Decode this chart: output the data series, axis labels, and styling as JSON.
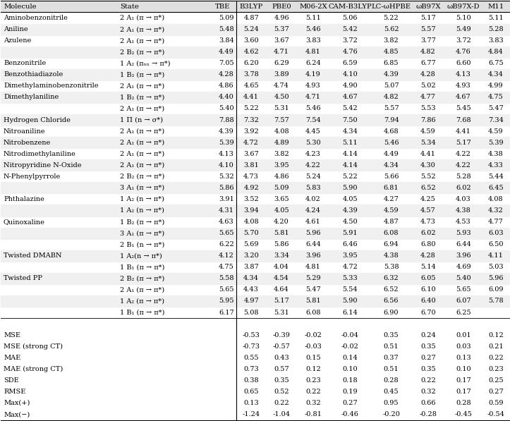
{
  "columns": [
    "Molecule",
    "State",
    "TBE",
    "B3LYP",
    "PBE0",
    "M06-2X",
    "CAM-B3LYP",
    "LC-ωHPBE",
    "ωB97X",
    "ωB97X-D",
    "M11"
  ],
  "rows": [
    [
      "Aminobenzonitrile",
      "2 A₁ (π → π*)",
      "5.09",
      "4.87",
      "4.96",
      "5.11",
      "5.06",
      "5.22",
      "5.17",
      "5.10",
      "5.11"
    ],
    [
      "Aniline",
      "2 A₁ (π → π*)",
      "5.48",
      "5.24",
      "5.37",
      "5.46",
      "5.42",
      "5.62",
      "5.57",
      "5.49",
      "5.28"
    ],
    [
      "Azulene",
      "2 A₁ (π → π*)",
      "3.84",
      "3.60",
      "3.67",
      "3.83",
      "3.72",
      "3.82",
      "3.77",
      "3.72",
      "3.83"
    ],
    [
      "",
      "2 B₂ (π → π*)",
      "4.49",
      "4.62",
      "4.71",
      "4.81",
      "4.76",
      "4.85",
      "4.82",
      "4.76",
      "4.84"
    ],
    [
      "Benzonitrile",
      "1 A₂ (πₙₙ → π*)",
      "7.05",
      "6.20",
      "6.29",
      "6.24",
      "6.59",
      "6.85",
      "6.77",
      "6.60",
      "6.75"
    ],
    [
      "Benzothiadiazole",
      "1 B₂ (π → π*)",
      "4.28",
      "3.78",
      "3.89",
      "4.19",
      "4.10",
      "4.39",
      "4.28",
      "4.13",
      "4.34"
    ],
    [
      "Dimethylaminobenzonitrile",
      "2 A₁ (π → π*)",
      "4.86",
      "4.65",
      "4.74",
      "4.93",
      "4.90",
      "5.07",
      "5.02",
      "4.93",
      "4.99"
    ],
    [
      "Dimethylaniline",
      "1 B₂ (π → π*)",
      "4.40",
      "4.41",
      "4.50",
      "4.71",
      "4.67",
      "4.82",
      "4.77",
      "4.67",
      "4.75"
    ],
    [
      "",
      "2 A₁ (π → π*)",
      "5.40",
      "5.22",
      "5.31",
      "5.46",
      "5.42",
      "5.57",
      "5.53",
      "5.45",
      "5.47"
    ],
    [
      "Hydrogen Chloride",
      "1 Π (n → σ*)",
      "7.88",
      "7.32",
      "7.57",
      "7.54",
      "7.50",
      "7.94",
      "7.86",
      "7.68",
      "7.34"
    ],
    [
      "Nitroaniline",
      "2 A₁ (π → π*)",
      "4.39",
      "3.92",
      "4.08",
      "4.45",
      "4.34",
      "4.68",
      "4.59",
      "4.41",
      "4.59"
    ],
    [
      "Nitrobenzene",
      "2 A₁ (π → π*)",
      "5.39",
      "4.72",
      "4.89",
      "5.30",
      "5.11",
      "5.46",
      "5.34",
      "5.17",
      "5.39"
    ],
    [
      "Nitrodimethylaniline",
      "2 A₁ (π → π*)",
      "4.13",
      "3.67",
      "3.82",
      "4.23",
      "4.14",
      "4.49",
      "4.41",
      "4.22",
      "4.38"
    ],
    [
      "Nitropyridine N-Oxide",
      "2 A₁ (π → π*)",
      "4.10",
      "3.81",
      "3.95",
      "4.22",
      "4.14",
      "4.34",
      "4.30",
      "4.22",
      "4.33"
    ],
    [
      "N-Phenylpyrrole",
      "2 B₂ (π → π*)",
      "5.32",
      "4.73",
      "4.86",
      "5.24",
      "5.22",
      "5.66",
      "5.52",
      "5.28",
      "5.44"
    ],
    [
      "",
      "3 A₁ (π → π*)",
      "5.86",
      "4.92",
      "5.09",
      "5.83",
      "5.90",
      "6.81",
      "6.52",
      "6.02",
      "6.45"
    ],
    [
      "Phthalazine",
      "1 A₂ (n → π*)",
      "3.91",
      "3.52",
      "3.65",
      "4.02",
      "4.05",
      "4.27",
      "4.25",
      "4.03",
      "4.08"
    ],
    [
      "",
      "1 A₂ (n → π*)",
      "4.31",
      "3.94",
      "4.05",
      "4.24",
      "4.39",
      "4.59",
      "4.57",
      "4.38",
      "4.32"
    ],
    [
      "Quinoxaline",
      "1 B₂ (π → π*)",
      "4.63",
      "4.08",
      "4.20",
      "4.61",
      "4.50",
      "4.87",
      "4.73",
      "4.53",
      "4.77"
    ],
    [
      "",
      "3 A₁ (π → π*)",
      "5.65",
      "5.70",
      "5.81",
      "5.96",
      "5.91",
      "6.08",
      "6.02",
      "5.93",
      "6.03"
    ],
    [
      "",
      "2 B₁ (n → π*)",
      "6.22",
      "5.69",
      "5.86",
      "6.44",
      "6.46",
      "6.94",
      "6.80",
      "6.44",
      "6.50"
    ],
    [
      "Twisted DMABN",
      "1 A₂(n → π*)",
      "4.12",
      "3.20",
      "3.34",
      "3.96",
      "3.95",
      "4.38",
      "4.28",
      "3.96",
      "4.11"
    ],
    [
      "",
      "1 B₁ (π → π*)",
      "4.75",
      "3.87",
      "4.04",
      "4.81",
      "4.72",
      "5.38",
      "5.14",
      "4.69",
      "5.03"
    ],
    [
      "Twisted PP",
      "2 B₂ (π → π*)",
      "5.58",
      "4.34",
      "4.54",
      "5.29",
      "5.33",
      "6.32",
      "6.05",
      "5.40",
      "5.96"
    ],
    [
      "",
      "2 A₁ (π → π*)",
      "5.65",
      "4.43",
      "4.64",
      "5.47",
      "5.54",
      "6.52",
      "6.10",
      "5.65",
      "6.09"
    ],
    [
      "",
      "1 A₂ (π → π*)",
      "5.95",
      "4.97",
      "5.17",
      "5.81",
      "5.90",
      "6.56",
      "6.40",
      "6.07",
      "5.78"
    ],
    [
      "",
      "1 B₁ (π → π*)",
      "6.17",
      "5.08",
      "5.31",
      "6.08",
      "6.14",
      "6.90",
      "6.70",
      "6.25",
      ""
    ]
  ],
  "stats": [
    [
      "MSE",
      "-0.53",
      "-0.39",
      "-0.02",
      "-0.04",
      "0.35",
      "0.24",
      "0.01",
      "0.12"
    ],
    [
      "MSE (strong CT)",
      "-0.73",
      "-0.57",
      "-0.03",
      "-0.02",
      "0.51",
      "0.35",
      "0.03",
      "0.21"
    ],
    [
      "MAE",
      "0.55",
      "0.43",
      "0.15",
      "0.14",
      "0.37",
      "0.27",
      "0.13",
      "0.22"
    ],
    [
      "MAE (strong CT)",
      "0.73",
      "0.57",
      "0.12",
      "0.10",
      "0.51",
      "0.35",
      "0.10",
      "0.23"
    ],
    [
      "SDE",
      "0.38",
      "0.35",
      "0.23",
      "0.18",
      "0.28",
      "0.22",
      "0.17",
      "0.25"
    ],
    [
      "RMSE",
      "0.65",
      "0.52",
      "0.22",
      "0.19",
      "0.45",
      "0.32",
      "0.17",
      "0.27"
    ],
    [
      "Max(+)",
      "0.13",
      "0.22",
      "0.32",
      "0.27",
      "0.95",
      "0.66",
      "0.28",
      "0.59"
    ],
    [
      "Max(−)",
      "-1.24",
      "-1.04",
      "-0.81",
      "-0.46",
      "-0.20",
      "-0.28",
      "-0.45",
      "-0.54"
    ]
  ],
  "col_widths": [
    1.85,
    1.45,
    0.42,
    0.48,
    0.48,
    0.52,
    0.65,
    0.65,
    0.52,
    0.6,
    0.42
  ],
  "header_bg": "#e0e0e0",
  "alt_row_bg": "#f0f0f0",
  "font_size": 7.0,
  "header_font_size": 7.2
}
